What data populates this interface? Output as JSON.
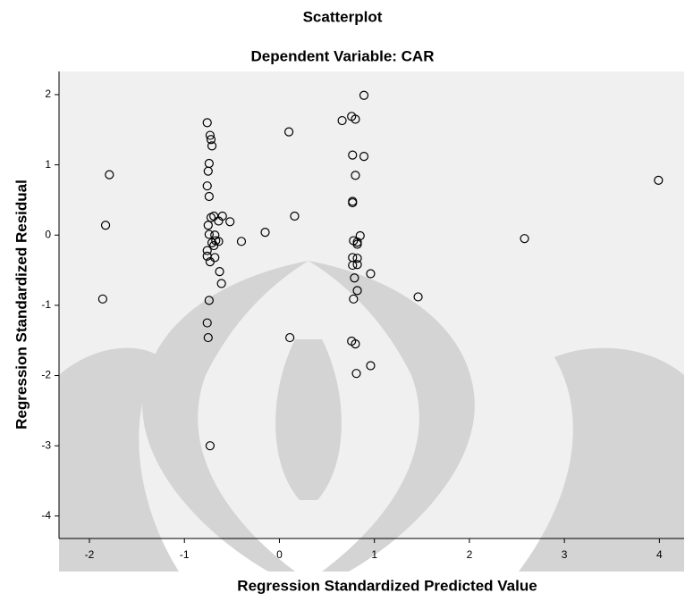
{
  "chart_data": {
    "type": "scatter",
    "title": "Scatterplot",
    "subtitle": "Dependent Variable: CAR",
    "x_label": "Regression Standardized Predicted Value",
    "y_label": "Regression Standardized Residual",
    "xlim": [
      -2.32,
      4.26
    ],
    "ylim": [
      -4.32,
      2.33
    ],
    "xticks": [
      -2,
      -1,
      0,
      1,
      2,
      3,
      4
    ],
    "yticks": [
      -4,
      -3,
      -2,
      -1,
      0,
      1,
      2
    ],
    "color": "#000000",
    "x": [
      -1.79,
      -1.83,
      -1.86,
      -0.76,
      -0.73,
      -0.72,
      -0.71,
      -0.74,
      -0.75,
      -0.76,
      -0.74,
      -0.72,
      -0.69,
      -0.75,
      -0.6,
      -0.64,
      -0.52,
      -0.74,
      -0.68,
      -0.71,
      -0.67,
      -0.64,
      -0.69,
      -0.76,
      -0.76,
      -0.73,
      -0.68,
      -0.63,
      -0.61,
      -0.74,
      -0.76,
      -0.75,
      -0.73,
      -0.4,
      -0.15,
      0.1,
      0.16,
      0.11,
      0.66,
      0.76,
      0.8,
      0.89,
      0.77,
      0.89,
      0.8,
      0.77,
      0.77,
      0.85,
      0.78,
      0.82,
      0.82,
      0.77,
      0.82,
      0.77,
      0.82,
      0.96,
      0.79,
      0.82,
      0.78,
      0.76,
      0.8,
      0.81,
      0.96,
      1.46,
      2.58,
      3.99
    ],
    "y": [
      0.86,
      0.14,
      -0.91,
      1.6,
      1.42,
      1.36,
      1.27,
      1.02,
      0.91,
      0.7,
      0.55,
      0.25,
      0.27,
      0.14,
      0.27,
      0.2,
      0.19,
      0.01,
      0.0,
      -0.11,
      -0.08,
      -0.09,
      -0.15,
      -0.22,
      -0.3,
      -0.38,
      -0.32,
      -0.52,
      -0.69,
      -0.93,
      -1.25,
      -1.46,
      -3.0,
      -0.09,
      0.04,
      1.47,
      0.27,
      -1.46,
      1.63,
      1.69,
      1.65,
      1.99,
      1.14,
      1.12,
      0.85,
      0.48,
      0.46,
      -0.01,
      -0.08,
      -0.1,
      -0.13,
      -0.32,
      -0.33,
      -0.43,
      -0.42,
      -0.55,
      -0.61,
      -0.79,
      -0.91,
      -1.51,
      -1.55,
      -1.97,
      -1.86,
      -0.88,
      -0.05,
      0.78
    ]
  }
}
